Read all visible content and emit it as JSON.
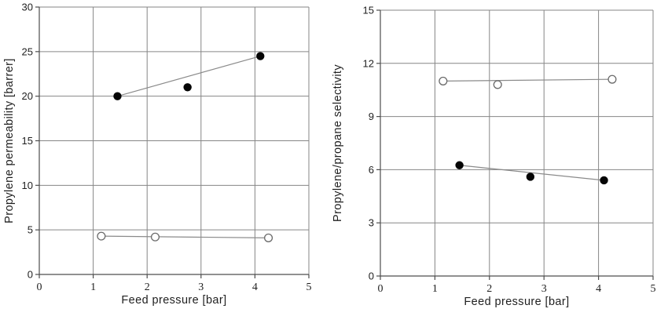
{
  "figure": {
    "background": "#ffffff",
    "chart_count": 2
  },
  "style": {
    "grid_color": "#868686",
    "axis_color": "#4d4d4d",
    "text_color": "#1f1f1f",
    "trend_line_color": "#8a8a8a",
    "filled_marker_color": "#050505",
    "open_marker_stroke": "#6b6b6b",
    "open_marker_fill": "#ffffff"
  },
  "chart_data": [
    {
      "type": "scatter",
      "title": "",
      "xlabel": "Feed pressure [bar]",
      "ylabel": "Propylene permeability [barrer]",
      "xlim": [
        0,
        5
      ],
      "ylim": [
        0,
        30
      ],
      "xticks": [
        0,
        1,
        2,
        3,
        4,
        5
      ],
      "yticks": [
        0,
        5,
        10,
        15,
        20,
        25,
        30
      ],
      "grid": true,
      "legend": "none",
      "series": [
        {
          "name": "filled-circles",
          "marker": "filled-circle",
          "line": "straight-trend",
          "points": [
            [
              1.45,
              20.0
            ],
            [
              2.75,
              21.0
            ],
            [
              4.1,
              24.5
            ]
          ]
        },
        {
          "name": "open-circles",
          "marker": "open-circle",
          "line": "straight-trend",
          "points": [
            [
              1.15,
              4.3
            ],
            [
              2.15,
              4.2
            ],
            [
              4.25,
              4.1
            ]
          ]
        }
      ]
    },
    {
      "type": "scatter",
      "title": "",
      "xlabel": "Feed pressure [bar]",
      "ylabel": "Propylene/propane selectivity",
      "xlim": [
        0,
        5
      ],
      "ylim": [
        0,
        15
      ],
      "xticks": [
        0,
        1,
        2,
        3,
        4,
        5
      ],
      "yticks": [
        0,
        3,
        6,
        9,
        12,
        15
      ],
      "grid": true,
      "legend": "none",
      "series": [
        {
          "name": "open-circles",
          "marker": "open-circle",
          "line": "straight-trend",
          "points": [
            [
              1.15,
              11.0
            ],
            [
              2.15,
              10.8
            ],
            [
              4.25,
              11.1
            ]
          ]
        },
        {
          "name": "filled-circles",
          "marker": "filled-circle",
          "line": "straight-trend",
          "points": [
            [
              1.45,
              6.25
            ],
            [
              2.75,
              5.6
            ],
            [
              4.1,
              5.4
            ]
          ]
        }
      ]
    }
  ]
}
